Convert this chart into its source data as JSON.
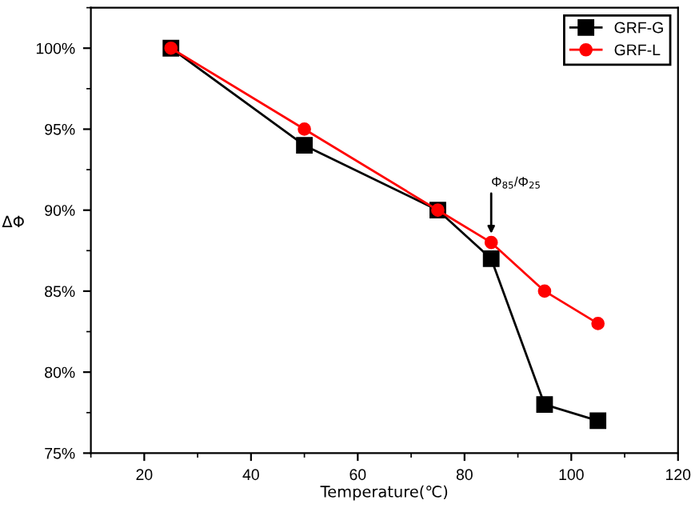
{
  "chart_data": {
    "type": "line",
    "xlabel": "Temperature(℃)",
    "ylabel": "ΔΦ",
    "x": [
      25,
      50,
      75,
      85,
      95,
      105
    ],
    "series": [
      {
        "name": "GRF-G",
        "color": "#000000",
        "marker": "square",
        "values": [
          100,
          94,
          90,
          87,
          78,
          77
        ]
      },
      {
        "name": "GRF-L",
        "color": "#ff0000",
        "marker": "circle",
        "values": [
          100,
          95,
          90,
          88,
          85,
          83
        ]
      }
    ],
    "xlim": [
      10,
      120
    ],
    "xticks": [
      20,
      40,
      60,
      80,
      100,
      120
    ],
    "ylim": [
      75,
      102.5
    ],
    "yticks": [
      {
        "value": 75,
        "label": "75%"
      },
      {
        "value": 80,
        "label": "80%"
      },
      {
        "value": 85,
        "label": "85%"
      },
      {
        "value": 90,
        "label": "90%"
      },
      {
        "value": 95,
        "label": "95%"
      },
      {
        "value": 100,
        "label": "100%"
      }
    ],
    "annotations": [
      {
        "text": "Φ$_{85}$/Φ$_{25}$",
        "x": 85,
        "y": 88
      }
    ],
    "grid": false,
    "legend": "top right",
    "line_style": "solid"
  }
}
